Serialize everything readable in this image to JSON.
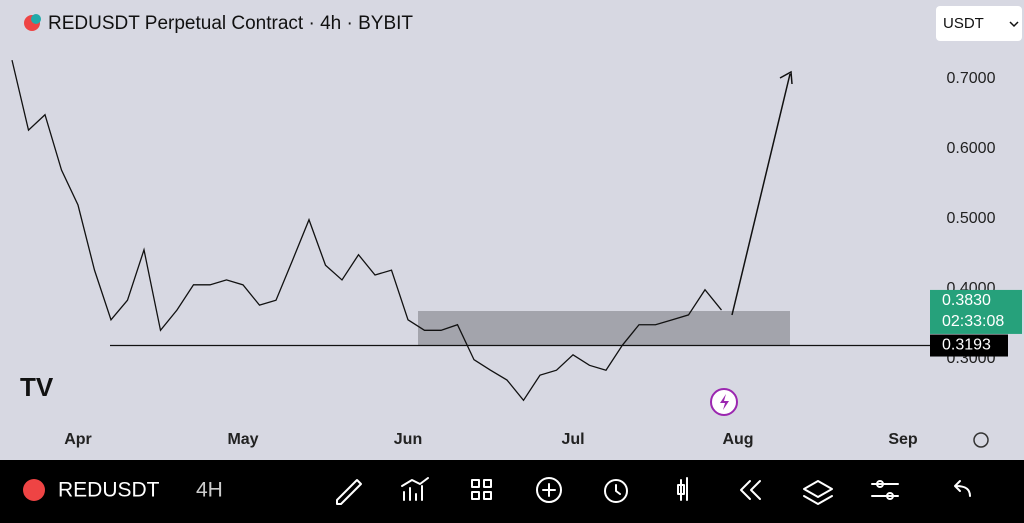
{
  "chart_data": {
    "type": "line",
    "title": "REDUSDT Perpetual Contract · 4h · BYBIT",
    "currency": "USDT",
    "categories": [
      null,
      null,
      null,
      null,
      "Apr",
      null,
      null,
      null,
      null,
      null,
      null,
      null,
      null,
      null,
      "May",
      null,
      null,
      null,
      null,
      null,
      null,
      null,
      null,
      null,
      "Jun",
      null,
      null,
      null,
      null,
      null,
      null,
      null,
      null,
      null,
      "Jul",
      null,
      null,
      null,
      null,
      null,
      null,
      null,
      null,
      null,
      "Aug",
      null,
      null,
      null,
      null,
      null,
      null,
      null,
      null,
      null,
      "Sep"
    ],
    "series": [
      {
        "name": "REDUSDT",
        "color": "#111111",
        "values": [
          0.727,
          0.627,
          0.649,
          0.57,
          0.52,
          0.427,
          0.356,
          0.384,
          0.456,
          0.341,
          0.37,
          0.406,
          0.406,
          0.413,
          0.406,
          0.377,
          0.384,
          0.441,
          0.499,
          0.434,
          0.413,
          0.449,
          0.42,
          0.427,
          0.356,
          0.341,
          0.341,
          0.349,
          0.299,
          0.284,
          0.27,
          0.241,
          0.277,
          0.284,
          0.306,
          0.291,
          0.284,
          0.32,
          0.349,
          0.349,
          0.356,
          0.363,
          0.399,
          0.37,
          null,
          null,
          null,
          null,
          null,
          null,
          null,
          null,
          null,
          null,
          null
        ]
      }
    ],
    "ylim": [
      0.2129,
      0.8129
    ],
    "yticks": [
      {
        "value": 0.3,
        "label": "0.3000"
      },
      {
        "value": 0.4,
        "label": "0.4000"
      },
      {
        "value": 0.5,
        "label": "0.5000"
      },
      {
        "value": 0.6,
        "label": "0.6000"
      },
      {
        "value": 0.7,
        "label": "0.7000"
      }
    ],
    "last_price": {
      "value": 0.383,
      "label": "0.3830"
    },
    "countdown": "02:33:08",
    "support_level": {
      "value": 0.3193,
      "label": "0.3193"
    }
  },
  "toolbar": {
    "symbol": "REDUSDT",
    "interval": "4H"
  }
}
